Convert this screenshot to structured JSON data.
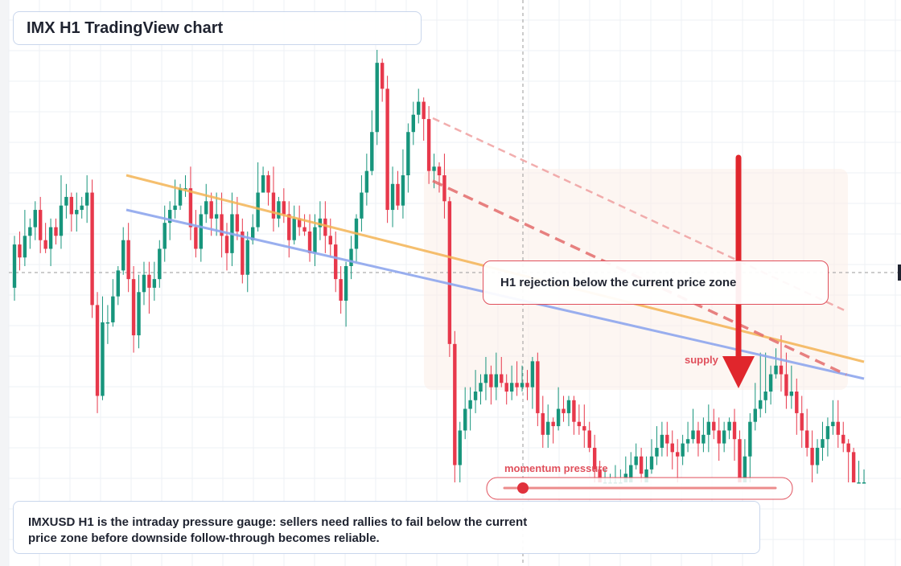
{
  "header": {
    "title": "IMX H1 TradingView chart"
  },
  "callout": {
    "text": "H1 rejection below the current price zone"
  },
  "labels": {
    "supply": "supply",
    "momentum": "momentum pressure"
  },
  "summary": {
    "text": "IMXUSD H1 is the intraday pressure gauge: sellers need rallies to fail below the current price zone before downside follow-through becomes reliable."
  },
  "colors": {
    "up": "#17957c",
    "down": "#e7384b",
    "trend_orange": "#f4b455",
    "trend_blue": "#8fa7ee",
    "dashed_red": "#e46c6c",
    "arrow": "#e0262c",
    "zone": "#fbeee8"
  },
  "chart_data": {
    "type": "candlestick",
    "symbol": "IMXUSD",
    "timeframe": "H1",
    "current_price_level": 0.5,
    "candles": [
      [
        0.45,
        0.55,
        0.57,
        0.42
      ],
      [
        0.55,
        0.52,
        0.58,
        0.49
      ],
      [
        0.52,
        0.57,
        0.63,
        0.5
      ],
      [
        0.57,
        0.59,
        0.61,
        0.54
      ],
      [
        0.59,
        0.63,
        0.65,
        0.56
      ],
      [
        0.63,
        0.56,
        0.66,
        0.53
      ],
      [
        0.56,
        0.54,
        0.6,
        0.53
      ],
      [
        0.54,
        0.59,
        0.61,
        0.5
      ],
      [
        0.59,
        0.57,
        0.61,
        0.55
      ],
      [
        0.57,
        0.64,
        0.71,
        0.54
      ],
      [
        0.64,
        0.66,
        0.69,
        0.61
      ],
      [
        0.66,
        0.62,
        0.67,
        0.58
      ],
      [
        0.62,
        0.63,
        0.67,
        0.58
      ],
      [
        0.63,
        0.64,
        0.66,
        0.61
      ],
      [
        0.64,
        0.67,
        0.71,
        0.6
      ],
      [
        0.67,
        0.41,
        0.7,
        0.38
      ],
      [
        0.41,
        0.2,
        0.44,
        0.16
      ],
      [
        0.2,
        0.37,
        0.43,
        0.19
      ],
      [
        0.37,
        0.37,
        0.41,
        0.32
      ],
      [
        0.37,
        0.43,
        0.47,
        0.36
      ],
      [
        0.43,
        0.49,
        0.5,
        0.41
      ],
      [
        0.49,
        0.56,
        0.59,
        0.48
      ],
      [
        0.56,
        0.47,
        0.6,
        0.44
      ],
      [
        0.47,
        0.34,
        0.5,
        0.3
      ],
      [
        0.34,
        0.44,
        0.48,
        0.31
      ],
      [
        0.44,
        0.48,
        0.51,
        0.41
      ],
      [
        0.48,
        0.45,
        0.51,
        0.39
      ],
      [
        0.45,
        0.47,
        0.51,
        0.42
      ],
      [
        0.47,
        0.54,
        0.56,
        0.45
      ],
      [
        0.54,
        0.6,
        0.64,
        0.51
      ],
      [
        0.6,
        0.63,
        0.65,
        0.56
      ],
      [
        0.63,
        0.64,
        0.7,
        0.61
      ],
      [
        0.64,
        0.68,
        0.69,
        0.63
      ],
      [
        0.68,
        0.68,
        0.71,
        0.66
      ],
      [
        0.68,
        0.59,
        0.73,
        0.56
      ],
      [
        0.59,
        0.54,
        0.63,
        0.52
      ],
      [
        0.54,
        0.62,
        0.64,
        0.51
      ],
      [
        0.62,
        0.65,
        0.69,
        0.6
      ],
      [
        0.65,
        0.61,
        0.67,
        0.57
      ],
      [
        0.61,
        0.62,
        0.67,
        0.57
      ],
      [
        0.62,
        0.57,
        0.67,
        0.52
      ],
      [
        0.57,
        0.53,
        0.6,
        0.49
      ],
      [
        0.53,
        0.62,
        0.67,
        0.5
      ],
      [
        0.62,
        0.58,
        0.66,
        0.56
      ],
      [
        0.58,
        0.48,
        0.61,
        0.46
      ],
      [
        0.48,
        0.56,
        0.58,
        0.44
      ],
      [
        0.56,
        0.59,
        0.62,
        0.55
      ],
      [
        0.59,
        0.67,
        0.74,
        0.58
      ],
      [
        0.67,
        0.71,
        0.73,
        0.68
      ],
      [
        0.71,
        0.67,
        0.72,
        0.64
      ],
      [
        0.67,
        0.61,
        0.73,
        0.58
      ],
      [
        0.61,
        0.65,
        0.66,
        0.59
      ],
      [
        0.65,
        0.62,
        0.68,
        0.6
      ],
      [
        0.62,
        0.56,
        0.65,
        0.52
      ],
      [
        0.56,
        0.61,
        0.64,
        0.55
      ],
      [
        0.61,
        0.59,
        0.64,
        0.57
      ],
      [
        0.59,
        0.58,
        0.62,
        0.57
      ],
      [
        0.58,
        0.53,
        0.62,
        0.51
      ],
      [
        0.53,
        0.59,
        0.62,
        0.5
      ],
      [
        0.59,
        0.61,
        0.65,
        0.56
      ],
      [
        0.61,
        0.57,
        0.65,
        0.53
      ],
      [
        0.57,
        0.55,
        0.61,
        0.52
      ],
      [
        0.55,
        0.47,
        0.58,
        0.44
      ],
      [
        0.47,
        0.42,
        0.5,
        0.39
      ],
      [
        0.42,
        0.5,
        0.51,
        0.36
      ],
      [
        0.5,
        0.54,
        0.57,
        0.47
      ],
      [
        0.54,
        0.61,
        0.62,
        0.51
      ],
      [
        0.61,
        0.67,
        0.71,
        0.58
      ],
      [
        0.67,
        0.72,
        0.76,
        0.64
      ],
      [
        0.72,
        0.81,
        0.86,
        0.71
      ],
      [
        0.81,
        0.97,
        1,
        0.78
      ],
      [
        0.97,
        0.91,
        0.98,
        0.88
      ],
      [
        0.91,
        0.63,
        0.94,
        0.6
      ],
      [
        0.63,
        0.69,
        0.73,
        0.59
      ],
      [
        0.69,
        0.64,
        0.72,
        0.63
      ],
      [
        0.64,
        0.71,
        0.77,
        0.61
      ],
      [
        0.71,
        0.81,
        0.83,
        0.67
      ],
      [
        0.81,
        0.85,
        0.88,
        0.78
      ],
      [
        0.85,
        0.88,
        0.91,
        0.83
      ],
      [
        0.88,
        0.84,
        0.89,
        0.79
      ],
      [
        0.84,
        0.72,
        0.87,
        0.69
      ],
      [
        0.72,
        0.73,
        0.76,
        0.68
      ],
      [
        0.73,
        0.71,
        0.74,
        0.67
      ],
      [
        0.71,
        0.65,
        0.76,
        0.61
      ],
      [
        0.65,
        0.32,
        0.66,
        0.29
      ],
      [
        0.32,
        0.04,
        0.35,
        0
      ],
      [
        0.04,
        0.12,
        0.14,
        0
      ],
      [
        0.12,
        0.17,
        0.22,
        0.1
      ],
      [
        0.17,
        0.19,
        0.22,
        0.12
      ],
      [
        0.19,
        0.21,
        0.26,
        0.16
      ],
      [
        0.21,
        0.23,
        0.25,
        0.18
      ],
      [
        0.23,
        0.25,
        0.29,
        0.19
      ],
      [
        0.25,
        0.22,
        0.27,
        0.18
      ],
      [
        0.22,
        0.25,
        0.3,
        0.19
      ],
      [
        0.25,
        0.23,
        0.29,
        0.22
      ],
      [
        0.23,
        0.21,
        0.25,
        0.18
      ],
      [
        0.21,
        0.23,
        0.27,
        0.19
      ],
      [
        0.23,
        0.22,
        0.28,
        0.2
      ],
      [
        0.22,
        0.23,
        0.27,
        0.21
      ],
      [
        0.23,
        0.22,
        0.26,
        0.19
      ],
      [
        0.22,
        0.28,
        0.29,
        0.17
      ],
      [
        0.28,
        0.16,
        0.3,
        0.13
      ],
      [
        0.16,
        0.11,
        0.2,
        0.08
      ],
      [
        0.11,
        0.14,
        0.18,
        0.08
      ],
      [
        0.14,
        0.13,
        0.15,
        0.09
      ],
      [
        0.13,
        0.17,
        0.22,
        0.12
      ],
      [
        0.17,
        0.16,
        0.2,
        0.14
      ],
      [
        0.16,
        0.19,
        0.2,
        0.13
      ],
      [
        0.19,
        0.14,
        0.2,
        0.11
      ],
      [
        0.14,
        0.13,
        0.18,
        0.11
      ],
      [
        0.13,
        0.12,
        0.18,
        0.08
      ],
      [
        0.12,
        0.08,
        0.14,
        0.07
      ],
      [
        0.08,
        0.03,
        0.11,
        0
      ],
      [
        0.03,
        0,
        0.05,
        0
      ],
      [
        0,
        0,
        0.03,
        0
      ],
      [
        0,
        0,
        0.02,
        0
      ],
      [
        0,
        0,
        0.04,
        0
      ],
      [
        0,
        0,
        0.03,
        0
      ],
      [
        0,
        0.02,
        0.06,
        0
      ],
      [
        0,
        0.04,
        0.07,
        0
      ],
      [
        0.04,
        0.06,
        0.09,
        0.03
      ],
      [
        0.06,
        0.02,
        0.08,
        0
      ],
      [
        0,
        0.03,
        0.06,
        0
      ],
      [
        0.03,
        0.06,
        0.1,
        0.02
      ],
      [
        0.06,
        0.08,
        0.13,
        0.04
      ],
      [
        0.08,
        0.11,
        0.14,
        0.06
      ],
      [
        0.11,
        0.09,
        0.14,
        0.06
      ],
      [
        0.09,
        0.07,
        0.12,
        0.03
      ],
      [
        0.07,
        0.06,
        0.1,
        0
      ],
      [
        0.06,
        0.09,
        0.11,
        0.04
      ],
      [
        0.09,
        0.1,
        0.14,
        0.07
      ],
      [
        0.1,
        0.12,
        0.17,
        0.09
      ],
      [
        0.12,
        0.09,
        0.14,
        0.06
      ],
      [
        0.09,
        0.11,
        0.15,
        0.07
      ],
      [
        0.11,
        0.14,
        0.18,
        0.07
      ],
      [
        0.14,
        0.12,
        0.17,
        0.1
      ],
      [
        0.12,
        0.09,
        0.15,
        0.05
      ],
      [
        0.09,
        0.12,
        0.14,
        0.07
      ],
      [
        0.12,
        0.14,
        0.15,
        0.1
      ],
      [
        0.14,
        0.1,
        0.17,
        0.05
      ],
      [
        0.1,
        0,
        0.12,
        0
      ],
      [
        0,
        0.06,
        0.1,
        0
      ],
      [
        0.06,
        0.14,
        0.16,
        0
      ],
      [
        0.14,
        0.17,
        0.23,
        0.12
      ],
      [
        0.17,
        0.19,
        0.3,
        0.15
      ],
      [
        0.19,
        0.21,
        0.3,
        0.16
      ],
      [
        0.21,
        0.25,
        0.27,
        0.18
      ],
      [
        0.25,
        0.27,
        0.31,
        0.24
      ],
      [
        0.27,
        0.25,
        0.34,
        0.21
      ],
      [
        0.25,
        0.2,
        0.3,
        0.17
      ],
      [
        0.2,
        0.21,
        0.27,
        0.17
      ],
      [
        0.21,
        0.16,
        0.24,
        0.11
      ],
      [
        0.16,
        0.12,
        0.2,
        0.08
      ],
      [
        0.12,
        0.08,
        0.17,
        0.06
      ],
      [
        0.08,
        0.04,
        0.12,
        0
      ],
      [
        0.04,
        0.08,
        0.1,
        0.02
      ],
      [
        0.08,
        0.1,
        0.14,
        0.05
      ],
      [
        0.1,
        0.13,
        0.15,
        0.06
      ],
      [
        0.13,
        0.14,
        0.19,
        0.11
      ],
      [
        0.14,
        0.11,
        0.19,
        0.08
      ],
      [
        0.11,
        0.09,
        0.14,
        0.07
      ],
      [
        0.09,
        0.07,
        0.1,
        0
      ],
      [
        0.07,
        0,
        0.08,
        0
      ],
      [
        0,
        0,
        0.05,
        0
      ],
      [
        0,
        0,
        0.03,
        0
      ]
    ]
  }
}
